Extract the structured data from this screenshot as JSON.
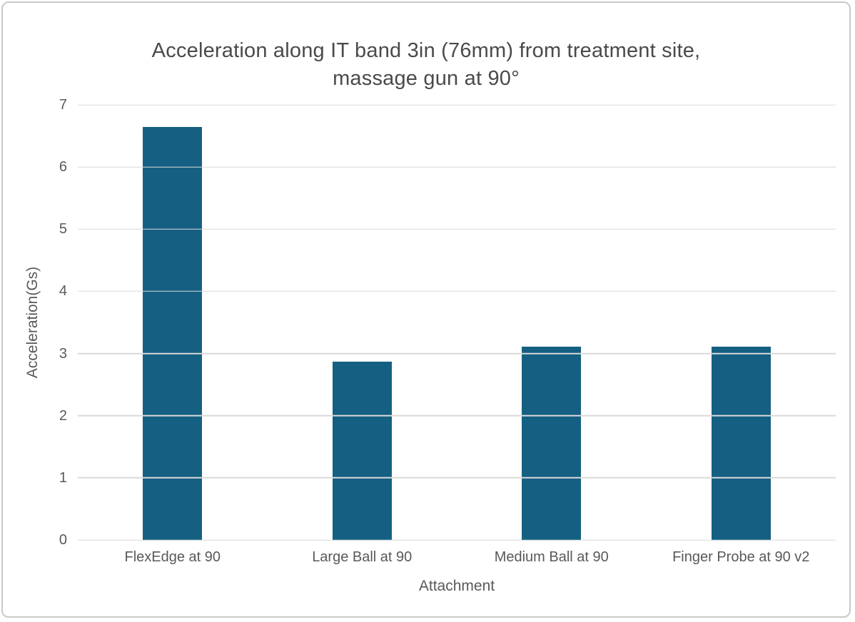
{
  "chart_data": {
    "type": "bar",
    "title": "Acceleration along IT band 3in (76mm) from treatment site, massage gun at 90°",
    "title_lines": [
      "Acceleration along IT band 3in (76mm) from treatment site,",
      "massage gun at 90°"
    ],
    "categories": [
      "FlexEdge at 90",
      "Large Ball at 90",
      "Medium Ball at 90",
      "Finger Probe at 90 v2"
    ],
    "values": [
      6.65,
      2.87,
      3.11,
      3.11
    ],
    "xlabel": "Attachment",
    "ylabel": "Acceleration(Gs)",
    "ylim": [
      0,
      7
    ],
    "yticks": [
      0,
      1,
      2,
      3,
      4,
      5,
      6,
      7
    ],
    "grid": "horizontal",
    "legend": "none",
    "colors": {
      "bar": "#156082",
      "gridline": "#d9d9d9",
      "title_text": "#4a4a4a",
      "axis_text": "#595959",
      "frame_border": "#c9c9c9",
      "background": "#ffffff"
    }
  }
}
